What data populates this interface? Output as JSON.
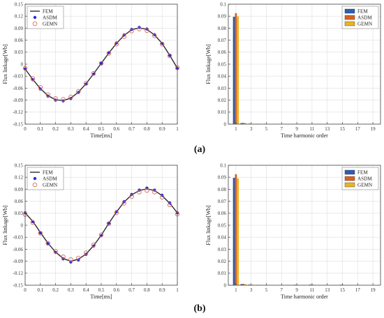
{
  "panel_labels": [
    "(a)",
    "(b)"
  ],
  "colors": {
    "fem": "#2b2b2b",
    "asdm": "#2b2bd6",
    "gemn": "#e06a55",
    "bar_fem": "#2f5cb3",
    "bar_asdm": "#d9611e",
    "bar_gemn": "#e8b423",
    "grid": "#dedede",
    "axis": "#444444"
  },
  "chart_data": [
    {
      "type": "line",
      "panel": "a",
      "xlabel": "Time[ms]",
      "ylabel": "Flux linkage[Wb]",
      "xlim": [
        0,
        1
      ],
      "ylim": [
        -0.15,
        0.15
      ],
      "xticks": [
        "0",
        "0.1",
        "0.2",
        "0.3",
        "0.4",
        "0.5",
        "0.6",
        "0.7",
        "0.8",
        "0.9",
        "1"
      ],
      "yticks": [
        "-0.15",
        "-0.12",
        "-0.09",
        "-0.06",
        "-0.03",
        "0",
        "0.03",
        "0.06",
        "0.09",
        "0.12",
        "0.15"
      ],
      "grid": true,
      "legend_position": "top-left",
      "series": [
        {
          "name": "FEM",
          "style": "line",
          "x": [
            0,
            0.05,
            0.1,
            0.15,
            0.2,
            0.25,
            0.3,
            0.35,
            0.4,
            0.45,
            0.5,
            0.55,
            0.6,
            0.65,
            0.7,
            0.75,
            0.8,
            0.85,
            0.9,
            0.95,
            1
          ],
          "y": [
            -0.012,
            -0.038,
            -0.061,
            -0.079,
            -0.089,
            -0.091,
            -0.085,
            -0.07,
            -0.049,
            -0.024,
            0.002,
            0.028,
            0.052,
            0.072,
            0.086,
            0.091,
            0.087,
            0.073,
            0.052,
            0.022,
            -0.01
          ]
        },
        {
          "name": "ASDM",
          "style": "dots",
          "x": [
            0,
            0.05,
            0.1,
            0.15,
            0.2,
            0.25,
            0.3,
            0.35,
            0.4,
            0.45,
            0.5,
            0.55,
            0.6,
            0.65,
            0.7,
            0.75,
            0.8,
            0.85,
            0.9,
            0.95,
            1
          ],
          "y": [
            -0.012,
            -0.039,
            -0.062,
            -0.08,
            -0.09,
            -0.092,
            -0.086,
            -0.071,
            -0.05,
            -0.025,
            0.002,
            0.029,
            0.053,
            0.073,
            0.087,
            0.092,
            0.088,
            0.074,
            0.052,
            0.022,
            -0.011
          ]
        },
        {
          "name": "GEMN",
          "style": "circles",
          "x": [
            0,
            0.05,
            0.1,
            0.15,
            0.2,
            0.25,
            0.3,
            0.35,
            0.4,
            0.45,
            0.5,
            0.55,
            0.6,
            0.65,
            0.7,
            0.75,
            0.8,
            0.85,
            0.9,
            0.95,
            1
          ],
          "y": [
            -0.01,
            -0.036,
            -0.058,
            -0.076,
            -0.086,
            -0.088,
            -0.082,
            -0.068,
            -0.048,
            -0.023,
            0.002,
            0.027,
            0.05,
            0.069,
            0.083,
            0.088,
            0.084,
            0.071,
            0.05,
            0.021,
            -0.009
          ]
        }
      ]
    },
    {
      "type": "bar",
      "panel": "a",
      "xlabel": "Time harmonic order",
      "ylabel": "Flux linkage[Wb]",
      "ylim": [
        0,
        0.1
      ],
      "xticks": [
        "1",
        "3",
        "5",
        "7",
        "9",
        "11",
        "13",
        "15",
        "17",
        "19"
      ],
      "yticks": [
        "0",
        "0.01",
        "0.02",
        "0.03",
        "0.04",
        "0.05",
        "0.06",
        "0.07",
        "0.08",
        "0.09",
        "0.1"
      ],
      "grid": true,
      "legend_position": "top-right",
      "orders": [
        1,
        2,
        3,
        4,
        5,
        6,
        7,
        8,
        9,
        10,
        11,
        12,
        13,
        14,
        15,
        16,
        17,
        18,
        19
      ],
      "series": [
        {
          "name": "FEM",
          "values": [
            0.0895,
            0.0009,
            0.0004,
            0.0003,
            0.0002,
            0.0001,
            0.0002,
            0.0001,
            0.0001,
            0.0001,
            0.0001,
            0.0001,
            0.0001,
            0.0001,
            0.0001,
            0.0001,
            0,
            0,
            0
          ]
        },
        {
          "name": "ASDM",
          "values": [
            0.0925,
            0.001,
            0.0004,
            0.0003,
            0.0002,
            0.0001,
            0.0002,
            0.0001,
            0.0001,
            0.0001,
            0.0001,
            0.0001,
            0.0001,
            0.0001,
            0.0001,
            0.0001,
            0,
            0,
            0
          ]
        },
        {
          "name": "GEMN",
          "values": [
            0.0898,
            0.0009,
            0.0004,
            0.0002,
            0.0002,
            0.0001,
            0.0001,
            0.0001,
            0.0001,
            0.0001,
            0.0001,
            0.0001,
            0.0001,
            0.0001,
            0.0001,
            0.0001,
            0,
            0,
            0
          ]
        }
      ]
    },
    {
      "type": "line",
      "panel": "b",
      "xlabel": "Time[ms]",
      "ylabel": "Flux linkage[Wb]",
      "xlim": [
        0,
        1
      ],
      "ylim": [
        -0.15,
        0.15
      ],
      "xticks": [
        "0",
        "0.1",
        "0.2",
        "0.3",
        "0.4",
        "0.5",
        "0.6",
        "0.7",
        "0.8",
        "0.9",
        "1"
      ],
      "yticks": [
        "-0.15",
        "-0.12",
        "-0.09",
        "-0.06",
        "-0.03",
        "0",
        "0.03",
        "0.06",
        "0.09",
        "0.12",
        "0.15"
      ],
      "grid": true,
      "legend_position": "top-left",
      "series": [
        {
          "name": "FEM",
          "style": "line",
          "x": [
            0,
            0.05,
            0.1,
            0.15,
            0.2,
            0.25,
            0.3,
            0.35,
            0.4,
            0.45,
            0.5,
            0.55,
            0.6,
            0.65,
            0.7,
            0.75,
            0.8,
            0.85,
            0.9,
            0.95,
            1
          ],
          "y": [
            0.031,
            0.01,
            -0.018,
            -0.045,
            -0.067,
            -0.083,
            -0.09,
            -0.085,
            -0.072,
            -0.051,
            -0.025,
            0.005,
            0.033,
            0.058,
            0.076,
            0.087,
            0.091,
            0.087,
            0.074,
            0.055,
            0.031
          ]
        },
        {
          "name": "ASDM",
          "style": "dots",
          "x": [
            0,
            0.05,
            0.1,
            0.15,
            0.2,
            0.25,
            0.3,
            0.35,
            0.4,
            0.45,
            0.5,
            0.55,
            0.6,
            0.65,
            0.7,
            0.75,
            0.8,
            0.85,
            0.9,
            0.95,
            1
          ],
          "y": [
            0.031,
            0.009,
            -0.019,
            -0.046,
            -0.068,
            -0.084,
            -0.092,
            -0.087,
            -0.073,
            -0.052,
            -0.026,
            0.005,
            0.034,
            0.059,
            0.077,
            0.088,
            0.093,
            0.088,
            0.075,
            0.056,
            0.031
          ]
        },
        {
          "name": "GEMN",
          "style": "circles",
          "x": [
            0,
            0.05,
            0.1,
            0.15,
            0.2,
            0.25,
            0.3,
            0.35,
            0.4,
            0.45,
            0.5,
            0.55,
            0.6,
            0.65,
            0.7,
            0.75,
            0.8,
            0.85,
            0.9,
            0.95,
            1
          ],
          "y": [
            0.027,
            0.007,
            -0.02,
            -0.045,
            -0.065,
            -0.079,
            -0.086,
            -0.082,
            -0.069,
            -0.049,
            -0.024,
            0.004,
            0.031,
            0.055,
            0.072,
            0.083,
            0.087,
            0.083,
            0.07,
            0.051,
            0.028
          ]
        }
      ]
    },
    {
      "type": "bar",
      "panel": "b",
      "xlabel": "Time harmonic order",
      "ylabel": "Flux linkage[Wb]",
      "ylim": [
        0,
        0.1
      ],
      "xticks": [
        "1",
        "3",
        "5",
        "7",
        "9",
        "11",
        "13",
        "15",
        "17",
        "19"
      ],
      "yticks": [
        "0",
        "0.01",
        "0.02",
        "0.03",
        "0.04",
        "0.05",
        "0.06",
        "0.07",
        "0.08",
        "0.09",
        "0.1"
      ],
      "grid": true,
      "legend_position": "top-right",
      "orders": [
        1,
        2,
        3,
        4,
        5,
        6,
        7,
        8,
        9,
        10,
        11,
        12,
        13,
        14,
        15,
        16,
        17,
        18,
        19
      ],
      "series": [
        {
          "name": "FEM",
          "values": [
            0.0895,
            0.001,
            0.0005,
            0.0003,
            0.0002,
            0.0001,
            0.0002,
            0.0002,
            0.0004,
            0.0002,
            0.0005,
            0.0001,
            0.0002,
            0.0001,
            0.0004,
            0.0001,
            0.0001,
            0,
            0
          ]
        },
        {
          "name": "ASDM",
          "values": [
            0.0925,
            0.0011,
            0.0005,
            0.0003,
            0.0002,
            0.0001,
            0.0002,
            0.0002,
            0.0004,
            0.0002,
            0.0005,
            0.0001,
            0.0002,
            0.0001,
            0.0004,
            0.0001,
            0.0001,
            0,
            0
          ]
        },
        {
          "name": "GEMN",
          "values": [
            0.089,
            0.0009,
            0.0004,
            0.0003,
            0.0002,
            0.0001,
            0.0002,
            0.0002,
            0.0003,
            0.0002,
            0.0004,
            0.0001,
            0.0002,
            0.0001,
            0.0003,
            0.0001,
            0.0001,
            0,
            0
          ]
        }
      ]
    }
  ]
}
